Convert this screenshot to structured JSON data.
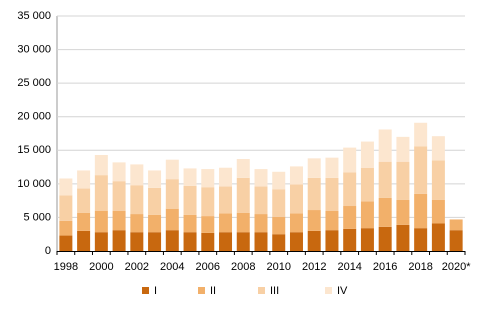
{
  "chart_data": {
    "type": "stacked_bar",
    "categories": [
      "1998",
      null,
      "2000",
      null,
      "2002",
      null,
      "2004",
      null,
      "2006",
      null,
      "2008",
      null,
      "2010",
      null,
      "2012",
      null,
      "2014",
      null,
      "2016",
      null,
      "2018",
      null,
      "2020*"
    ],
    "series": [
      {
        "name": "I",
        "color": "#c8680f",
        "values": [
          2300,
          3000,
          2800,
          3100,
          2800,
          2800,
          3100,
          2800,
          2700,
          2800,
          2800,
          2800,
          2500,
          2800,
          3000,
          3100,
          3300,
          3400,
          3600,
          3900,
          3400,
          4100,
          3100
        ]
      },
      {
        "name": "II",
        "color": "#f2b06a",
        "values": [
          2200,
          2700,
          3200,
          2900,
          2700,
          2600,
          3200,
          2600,
          2500,
          2800,
          2900,
          2700,
          2600,
          2800,
          3100,
          2900,
          3400,
          4000,
          4300,
          3700,
          5100,
          3500,
          1600
        ]
      },
      {
        "name": "III",
        "color": "#f8d0a5",
        "values": [
          3800,
          3600,
          5300,
          4400,
          4300,
          4000,
          4400,
          4300,
          4300,
          4000,
          5200,
          4100,
          4100,
          4300,
          4800,
          4900,
          5000,
          5000,
          5400,
          5700,
          7100,
          5900,
          null
        ]
      },
      {
        "name": "IV",
        "color": "#fce6cf",
        "values": [
          2500,
          2700,
          3000,
          2800,
          3100,
          2600,
          2900,
          2600,
          2700,
          2800,
          2800,
          2600,
          2600,
          2700,
          2900,
          3000,
          3700,
          3900,
          4800,
          3700,
          3500,
          3600,
          null
        ]
      }
    ],
    "ylim": [
      0,
      35000
    ],
    "yticks": [
      0,
      {
        "value": 5000,
        "label": "5 000"
      },
      {
        "value": 10000,
        "label": "10 000"
      },
      {
        "value": 15000,
        "label": "15 000"
      },
      {
        "value": 20000,
        "label": "20 000"
      },
      {
        "value": 25000,
        "label": "25 000"
      },
      {
        "value": 30000,
        "label": "30 000"
      },
      {
        "value": 35000,
        "label": "35 000"
      }
    ],
    "grid": true
  }
}
